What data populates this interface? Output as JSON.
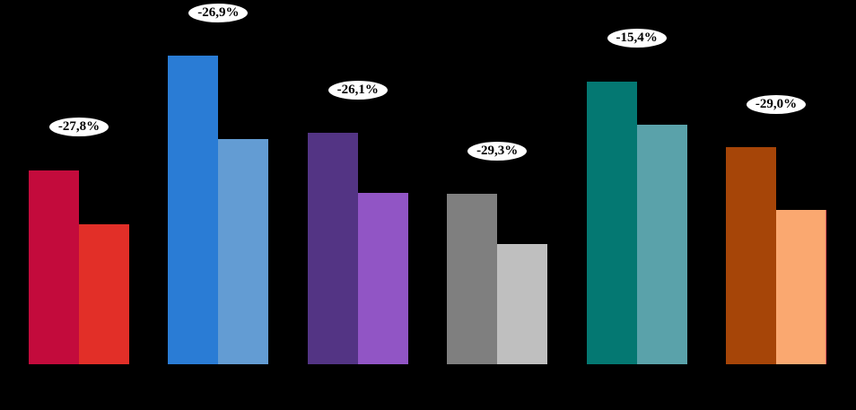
{
  "chart_data": {
    "type": "bar",
    "subtype": "paired-columns-with-percent-change-callouts",
    "title": "",
    "background_color": "#000000",
    "axes_visible": false,
    "grid": false,
    "legend": null,
    "callout_style": {
      "fill": "#FFFFFF",
      "border_color": "#000000",
      "text_color": "#000000"
    },
    "value_scale_note": "no value axis shown; values are relative units, tallest bar = 100",
    "ylim": [
      0,
      118
    ],
    "groups": [
      {
        "change_label": "-27,8%",
        "bars": [
          {
            "value": 62.8,
            "color": "#C30B3C"
          },
          {
            "value": 45.3,
            "color": "#E22F28"
          }
        ]
      },
      {
        "change_label": "-26,9%",
        "bars": [
          {
            "value": 100.0,
            "color": "#2A7CD5"
          },
          {
            "value": 73.1,
            "color": "#639CD3"
          }
        ]
      },
      {
        "change_label": "-26,1%",
        "bars": [
          {
            "value": 75.0,
            "color": "#533484"
          },
          {
            "value": 55.4,
            "color": "#9155C5"
          }
        ]
      },
      {
        "change_label": "-29,3%",
        "bars": [
          {
            "value": 55.2,
            "color": "#7F7F7F"
          },
          {
            "value": 39.0,
            "color": "#BFBFBF"
          }
        ]
      },
      {
        "change_label": "-15,4%",
        "bars": [
          {
            "value": 91.6,
            "color": "#047872"
          },
          {
            "value": 77.5,
            "color": "#5AA2AA"
          }
        ]
      },
      {
        "change_label": "-29,0%",
        "bars": [
          {
            "value": 70.3,
            "color": "#A64508"
          },
          {
            "value": 49.9,
            "color": "#FAA870",
            "edge_color": "#FF5C5C"
          }
        ]
      }
    ]
  }
}
